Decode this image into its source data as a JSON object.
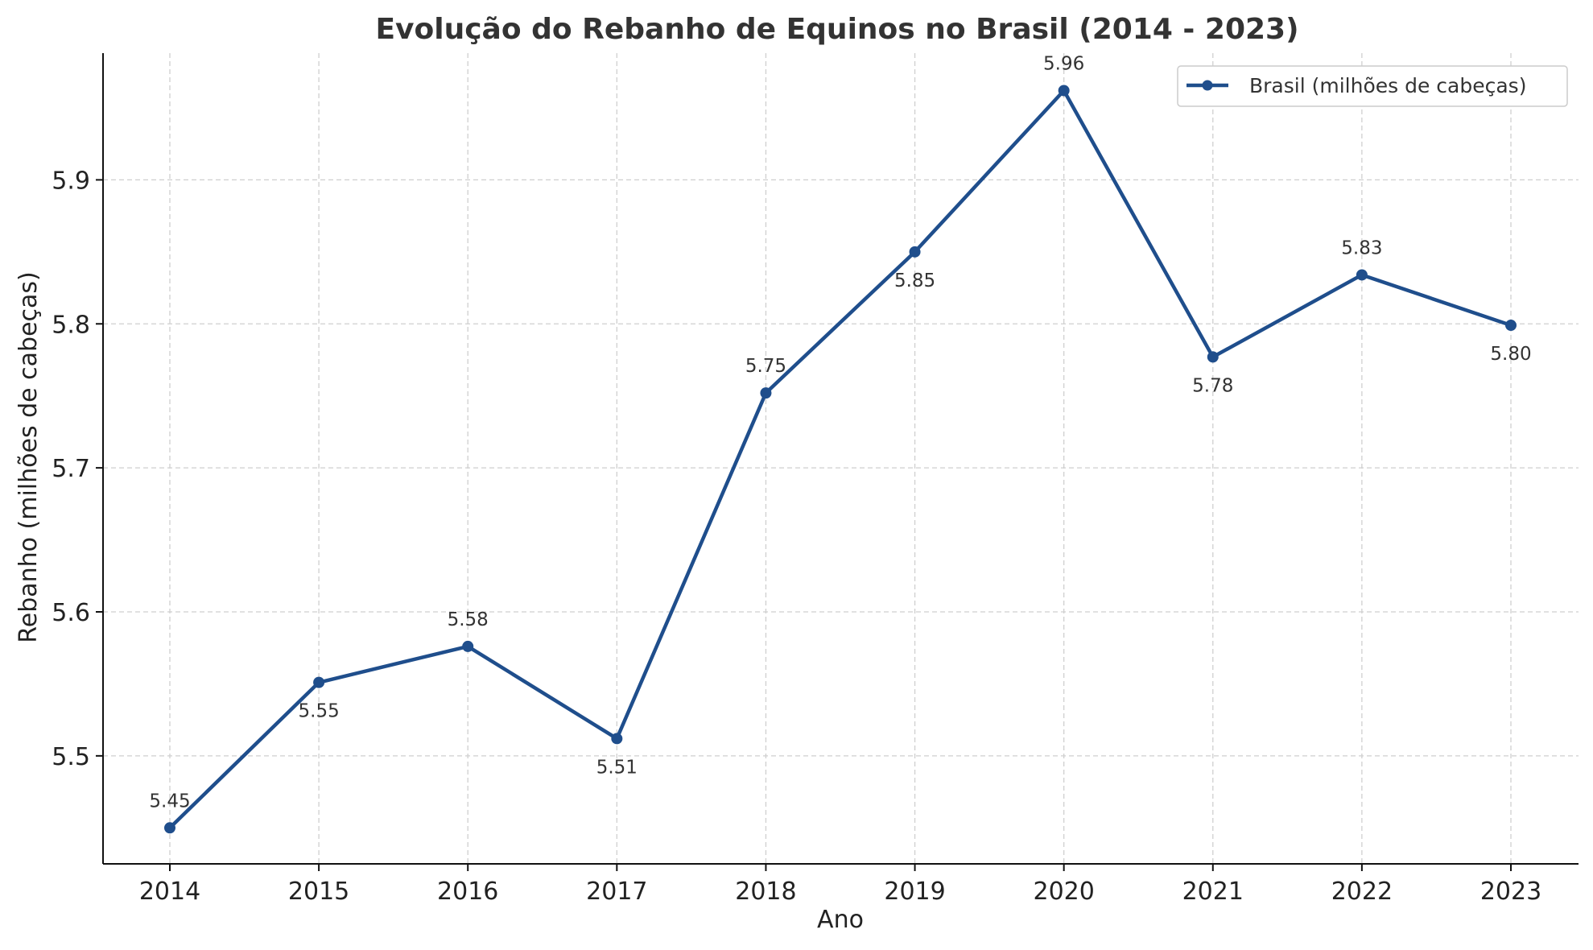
{
  "chart_data": {
    "type": "line",
    "title": "Evolução do Rebanho de Equinos no Brasil (2014 - 2023)",
    "xlabel": "Ano",
    "ylabel": "Rebanho (milhões de cabeças)",
    "categories": [
      "2014",
      "2015",
      "2016",
      "2017",
      "2018",
      "2019",
      "2020",
      "2021",
      "2022",
      "2023"
    ],
    "series": [
      {
        "name": "Brasil (milhões de cabeças)",
        "color": "#1f4e8c",
        "values": [
          5.45,
          5.551,
          5.576,
          5.512,
          5.752,
          5.85,
          5.962,
          5.777,
          5.834,
          5.799
        ],
        "labels": [
          "5.45",
          "5.55",
          "5.58",
          "5.51",
          "5.75",
          "5.85",
          "5.96",
          "5.78",
          "5.83",
          "5.80"
        ],
        "label_positions": [
          "above",
          "below",
          "above",
          "below",
          "above",
          "below",
          "above",
          "below",
          "above",
          "below"
        ]
      }
    ],
    "ylim": [
      5.425,
      5.988
    ],
    "yticks": [
      5.5,
      5.6,
      5.7,
      5.8,
      5.9
    ],
    "ytick_labels": [
      "5.5",
      "5.6",
      "5.7",
      "5.8",
      "5.9"
    ],
    "grid": true,
    "legend": "top-right"
  }
}
